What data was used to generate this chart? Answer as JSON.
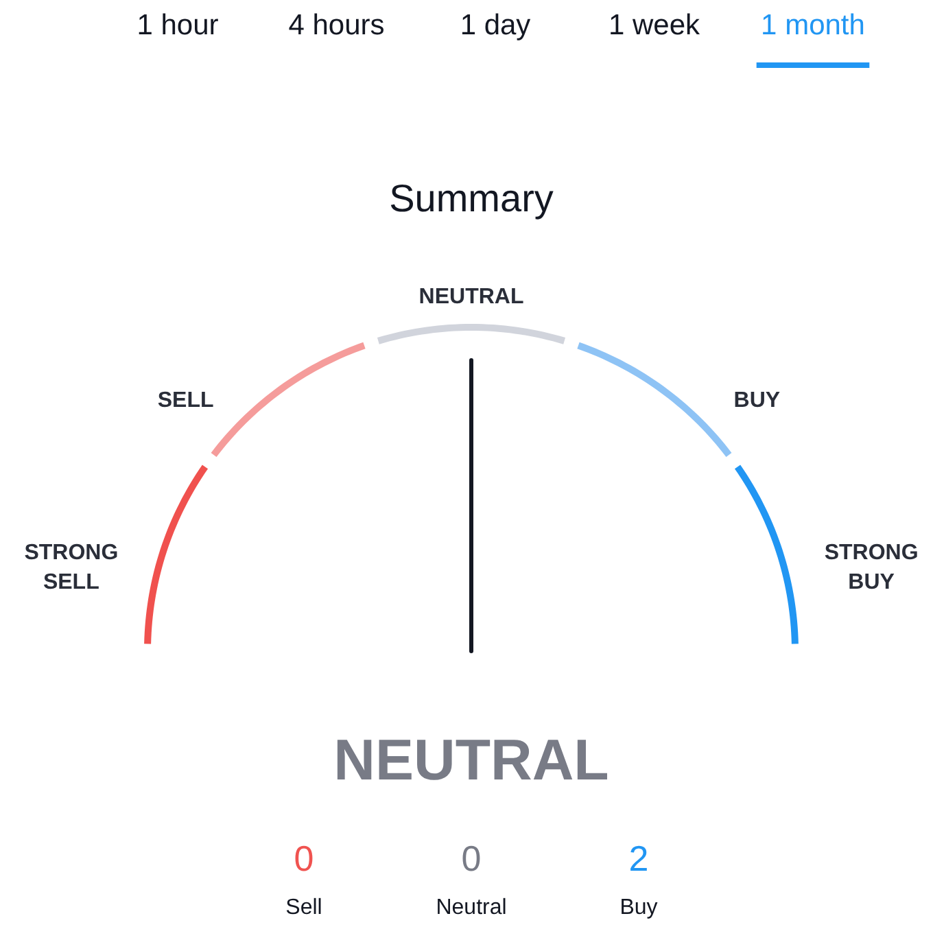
{
  "chart_data": [
    {
      "type": "other",
      "categories": [
        "1 hour",
        "4 hours",
        "1 day",
        "1 week",
        "1 month"
      ]
    },
    {
      "type": "donut",
      "title": "Summary",
      "categories": [
        "STRONG SELL",
        "SELL",
        "NEUTRAL",
        "BUY",
        "STRONG BUY"
      ],
      "values": [
        20,
        20,
        20,
        20,
        20
      ],
      "colors": [
        "#f0514e",
        "#f59c9b",
        "#d1d4dc",
        "#8ec3f5",
        "#2196f3"
      ],
      "needle": "NEUTRAL"
    },
    {
      "type": "other",
      "categories": [
        "Sell",
        "Neutral",
        "Buy"
      ],
      "values": [
        0,
        0,
        2
      ],
      "data_labels": true
    }
  ]
}
